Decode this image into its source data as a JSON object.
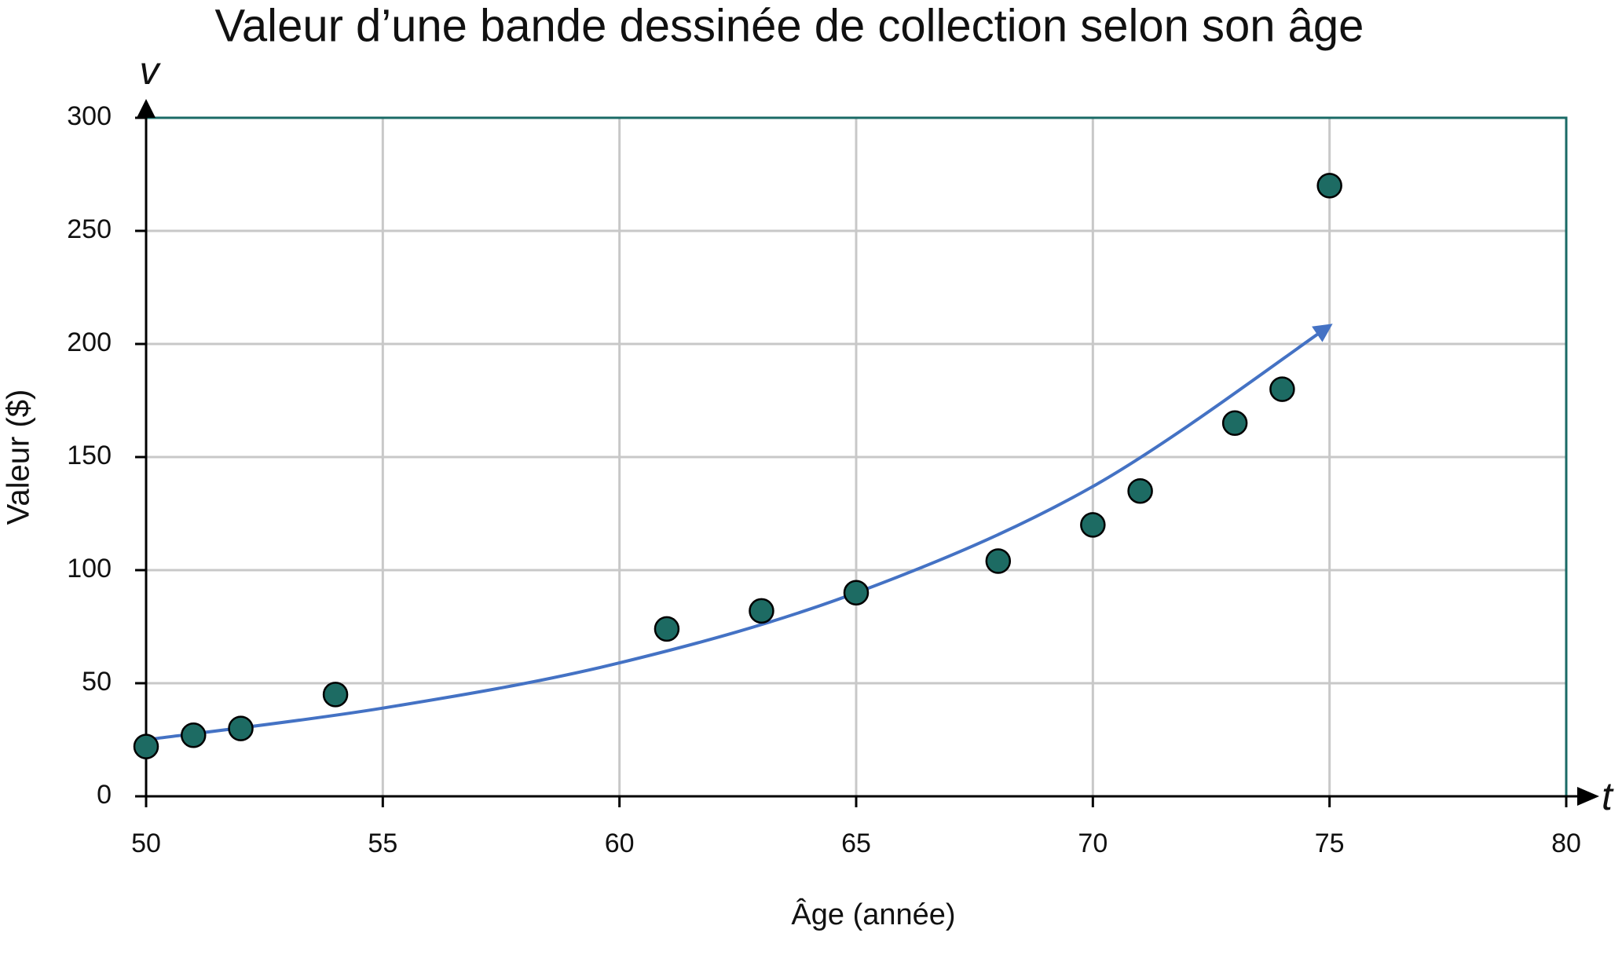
{
  "chart_data": {
    "type": "scatter",
    "title": "Valeur d’une bande dessinée de collection selon son âge",
    "x_label": "Âge (année)",
    "y_label": "Valeur ($)",
    "x_axis_symbol": "t",
    "y_axis_symbol": "v",
    "x": [
      50,
      51,
      52,
      54,
      61,
      63,
      65,
      68,
      70,
      71,
      73,
      74,
      75
    ],
    "values": [
      22,
      27,
      30,
      45,
      74,
      82,
      90,
      104,
      120,
      135,
      165,
      180,
      270
    ],
    "color": "#1d6b63",
    "curve": {
      "x": [
        50,
        55,
        60,
        65,
        70,
        75
      ],
      "values": [
        25,
        39,
        59,
        90,
        137,
        208
      ],
      "color": "#4472c4"
    },
    "xlim": [
      50,
      80
    ],
    "ylim": [
      0,
      300
    ],
    "xticks": [
      50,
      55,
      60,
      65,
      70,
      75,
      80
    ],
    "yticks": [
      0,
      50,
      100,
      150,
      200,
      250,
      300
    ],
    "grid": true
  }
}
